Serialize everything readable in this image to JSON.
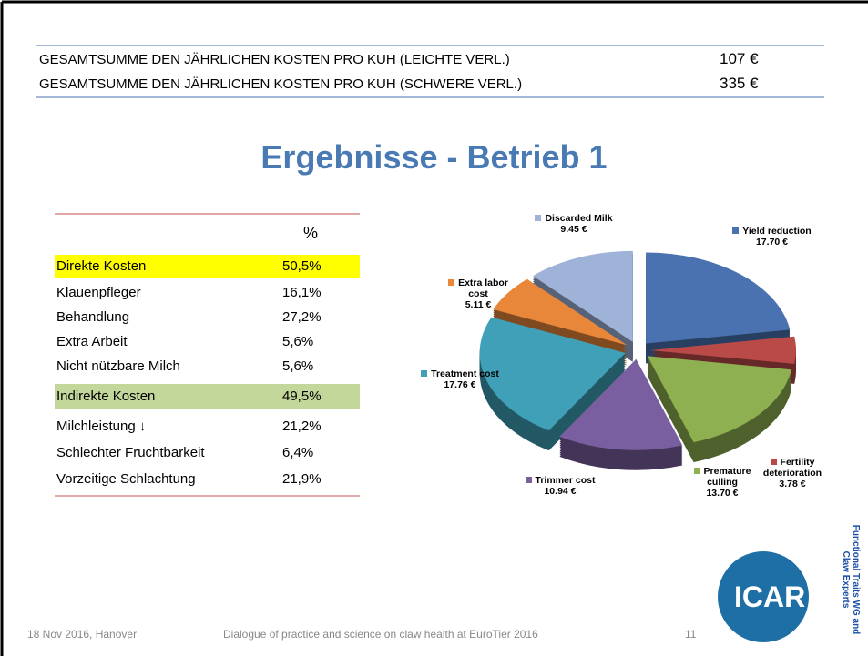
{
  "summary": [
    {
      "label": "GESAMTSUMME DEN JÄHRLICHEN KOSTEN PRO KUH (LEICHTE VERL.)",
      "value": "107 €"
    },
    {
      "label": "GESAMTSUMME DEN JÄHRLICHEN KOSTEN PRO KUH (SCHWERE VERL.)",
      "value": "335 €"
    }
  ],
  "title": "Ergebnisse - Betrieb 1",
  "table": {
    "header": "%",
    "rows": [
      [
        "Direkte Kosten",
        "50,5%"
      ],
      [
        "Klauenpfleger",
        "16,1%"
      ],
      [
        "Behandlung",
        "27,2%"
      ],
      [
        "Extra Arbeit",
        "5,6%"
      ],
      [
        "Nicht nützbare Milch",
        "5,6%"
      ],
      [
        "Indirekte Kosten",
        "49,5%"
      ],
      [
        "Milchleistung ↓",
        "21,2%"
      ],
      [
        "Schlechter Fruchtbarkeit",
        "6,4%"
      ],
      [
        "Vorzeitige Schlachtung",
        "21,9%"
      ]
    ]
  },
  "chart_data": {
    "type": "pie",
    "categories": [
      "Yield reduction",
      "Fertility deterioration",
      "Premature culling",
      "Trimmer cost",
      "Treatment cost",
      "Extra labor cost",
      "Discarded Milk"
    ],
    "values": [
      17.7,
      3.78,
      13.7,
      10.94,
      17.76,
      5.11,
      9.45
    ],
    "value_labels": [
      "17.70 €",
      "3.78 €",
      "13.70 €",
      "10.94 €",
      "17.76 €",
      "5.11 €",
      "9.45 €"
    ],
    "colors": [
      "#4a72b0",
      "#b94a48",
      "#8fb050",
      "#7a5fa0",
      "#3fa0b8",
      "#e8873a",
      "#9fb3d8"
    ]
  },
  "footer": {
    "date": "18 Nov 2016, Hanover",
    "event": "Dialogue of practice and science on claw health at EuroTier 2016",
    "page": "11",
    "logo": "ICAR",
    "group": "Functional Traits WG and Claw Experts"
  }
}
